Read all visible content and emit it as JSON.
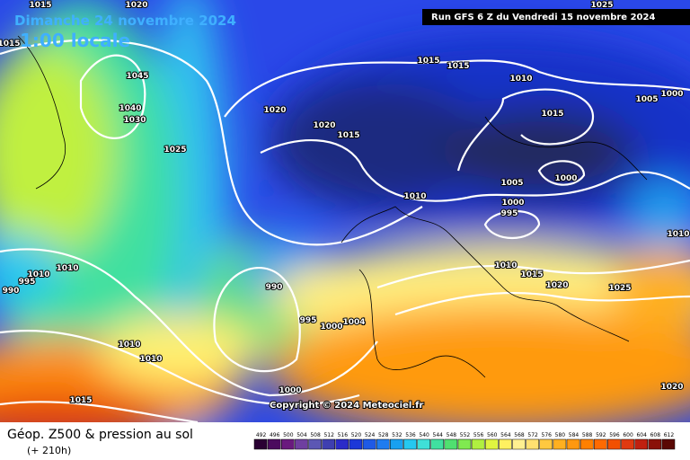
{
  "header": {
    "date": "Dimanche 24 novembre 2024",
    "time": "1:00 locale",
    "run": "Run GFS 6 Z du Vendredi 15 novembre 2024"
  },
  "copyright": "Copyright © 2024 Meteociel.fr",
  "footer": {
    "title": "Géop. Z500 & pression au sol",
    "lead": "(+ 210h)"
  },
  "isobar_labels": [
    "1015",
    "1020",
    "1015",
    "1045",
    "1040",
    "1030",
    "1025",
    "1020",
    "1020",
    "1015",
    "1015",
    "1015",
    "1010",
    "1015",
    "1005",
    "1000",
    "1025",
    "1005",
    "1000",
    "1000",
    "995",
    "1010",
    "1010",
    "1015",
    "1020",
    "1025",
    "1010",
    "990",
    "995",
    "1000",
    "1004",
    "1010",
    "1010",
    "995",
    "990",
    "1010",
    "1010",
    "1015",
    "1000",
    "1020"
  ],
  "legend": {
    "labels": [
      "492",
      "496",
      "500",
      "504",
      "508",
      "512",
      "516",
      "520",
      "524",
      "528",
      "532",
      "536",
      "540",
      "544",
      "548",
      "552",
      "556",
      "560",
      "564",
      "568",
      "572",
      "576",
      "580",
      "584",
      "588",
      "592",
      "596",
      "600",
      "604",
      "608",
      "612"
    ],
    "colors": [
      "#2a0033",
      "#4b0a5e",
      "#6a1a7e",
      "#6f3fa0",
      "#5c57b4",
      "#3f3fb0",
      "#2b2bc8",
      "#1c38d8",
      "#1f5ae6",
      "#1f7cf0",
      "#18a0f0",
      "#25c8f0",
      "#3fe0d8",
      "#40e0a0",
      "#50e070",
      "#80ea50",
      "#b0f040",
      "#e0f440",
      "#fff060",
      "#fff090",
      "#ffe070",
      "#ffc840",
      "#ffb020",
      "#ff9810",
      "#ff8000",
      "#ff6a00",
      "#f25000",
      "#e03a10",
      "#c02010",
      "#8a1008",
      "#5a0804"
    ]
  }
}
